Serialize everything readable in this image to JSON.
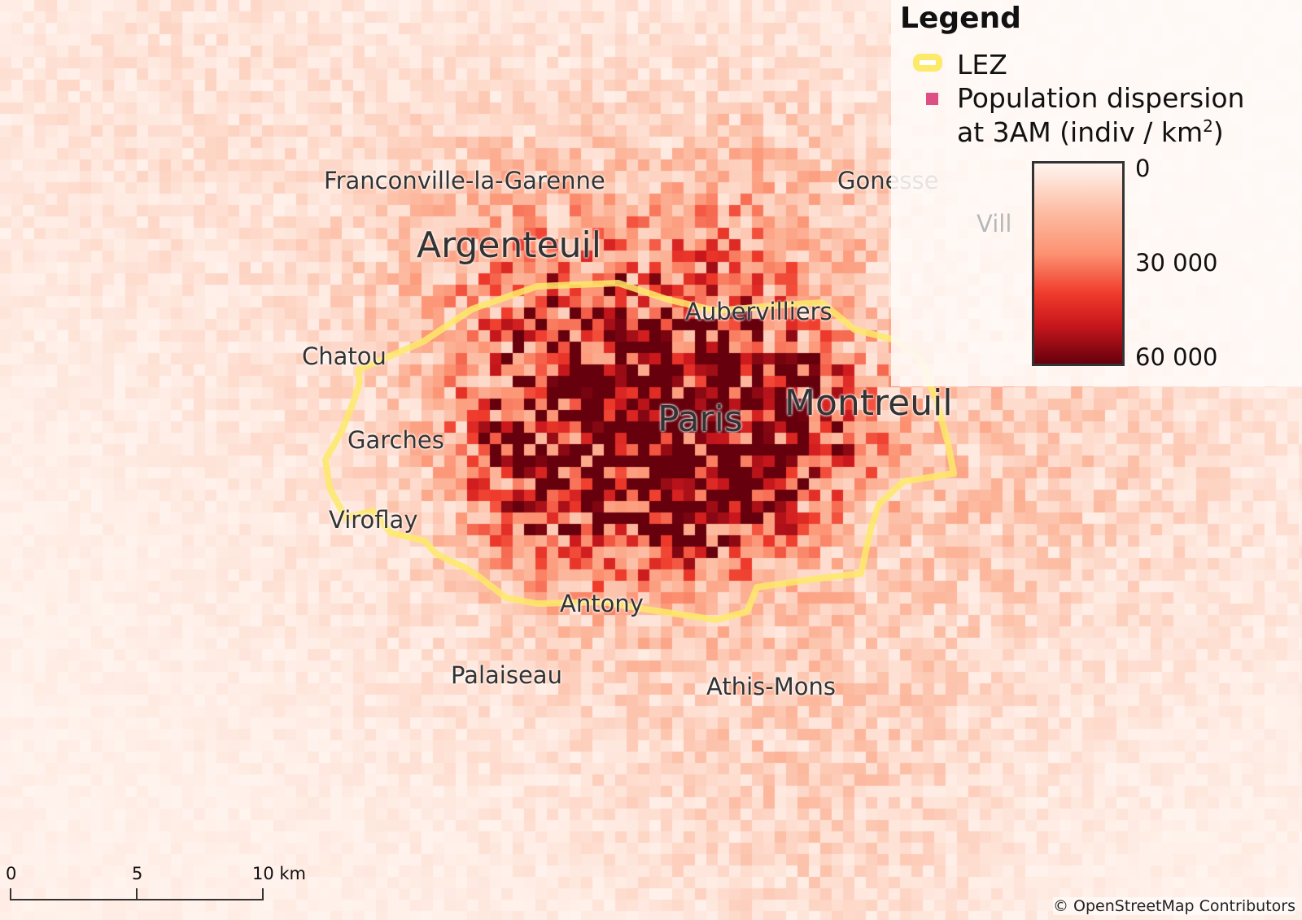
{
  "map": {
    "cities": [
      {
        "name": "Franconville-la-Garenne",
        "size": "normal"
      },
      {
        "name": "Gonesse",
        "size": "normal"
      },
      {
        "name": "Vill",
        "size": "faded"
      },
      {
        "name": "Argenteuil",
        "size": "large"
      },
      {
        "name": "Aubervilliers",
        "size": "normal"
      },
      {
        "name": "Chatou",
        "size": "normal"
      },
      {
        "name": "Paris",
        "size": "large"
      },
      {
        "name": "Montreuil",
        "size": "large"
      },
      {
        "name": "Garches",
        "size": "normal"
      },
      {
        "name": "Viroflay",
        "size": "normal"
      },
      {
        "name": "Antony",
        "size": "normal"
      },
      {
        "name": "Palaiseau",
        "size": "normal"
      },
      {
        "name": "Athis-Mons",
        "size": "normal"
      }
    ],
    "lez_color": "#fdea6a",
    "color_ramp": [
      "#fff5f0",
      "#fcbba1",
      "#fc9272",
      "#ef3b2c",
      "#cb181d",
      "#67000d"
    ]
  },
  "legend": {
    "title": "Legend",
    "lez_label": "LEZ",
    "population_line1": "Population dispersion",
    "population_line2": "at 3AM (indiv / km",
    "population_sup": "2",
    "population_end": ")",
    "ramp_ticks": [
      "0",
      "30 000",
      "60 000"
    ],
    "ramp_range": [
      0,
      60000
    ]
  },
  "scalebar": {
    "labels": [
      "0",
      "5",
      "10 km"
    ]
  },
  "attribution": "© OpenStreetMap Contributors"
}
